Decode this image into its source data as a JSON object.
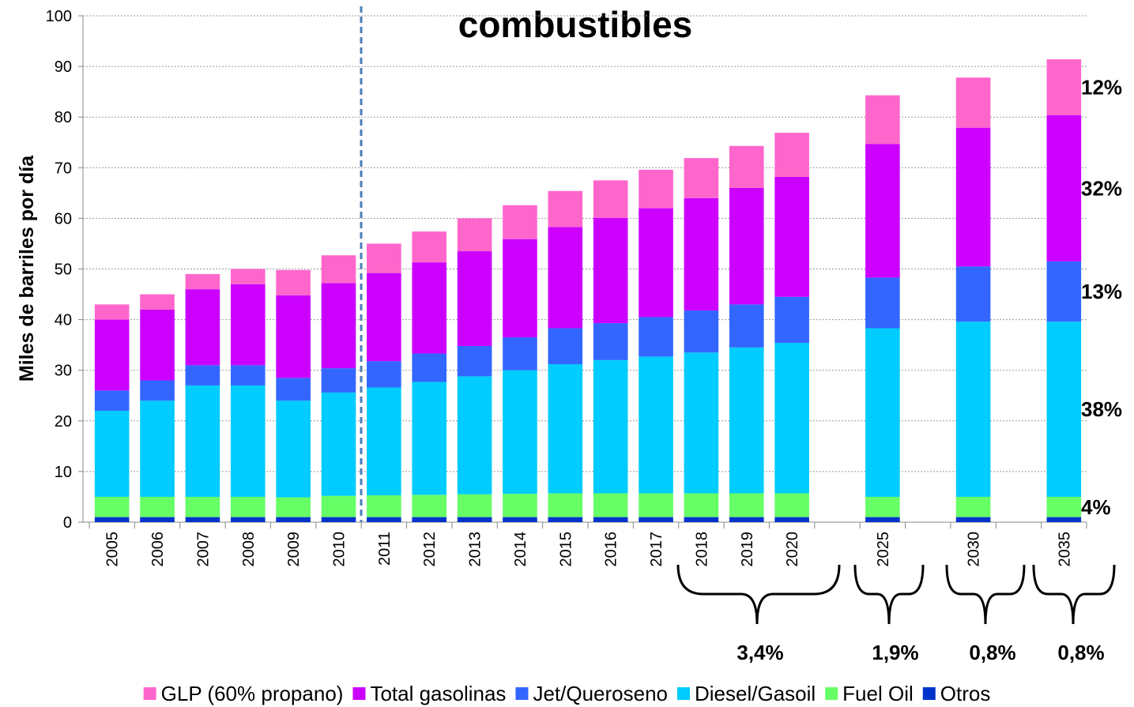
{
  "chart_data": {
    "type": "stacked_bar",
    "title": "combustibles",
    "y_label": "Miles de barriles por día",
    "categories": [
      "2005",
      "2006",
      "2007",
      "2008",
      "2009",
      "2010",
      "2011",
      "2012",
      "2013",
      "2014",
      "2015",
      "2016",
      "2017",
      "2018",
      "2019",
      "2020",
      null,
      "2025",
      null,
      "2030",
      null,
      "2035"
    ],
    "series": [
      {
        "name": "Otros",
        "color": "#0033cc",
        "values": [
          1,
          1,
          1,
          1,
          1,
          1,
          1,
          1,
          1,
          1,
          1,
          1,
          1,
          1,
          1,
          1,
          null,
          1,
          null,
          1,
          null,
          1
        ]
      },
      {
        "name": "Fuel Oil",
        "color": "#66ff66",
        "share": "4%",
        "values": [
          4,
          4,
          4,
          4,
          3.9,
          4.2,
          4.3,
          4.4,
          4.5,
          4.6,
          4.7,
          4.7,
          4.7,
          4.7,
          4.7,
          4.7,
          null,
          4,
          null,
          4,
          null,
          4
        ]
      },
      {
        "name": "Diesel/Gasoil",
        "color": "#00ccff",
        "share": "38%",
        "values": [
          17,
          19,
          22,
          22,
          19.1,
          20.4,
          21.3,
          22.3,
          23.3,
          24.4,
          25.5,
          26.3,
          27,
          27.8,
          28.8,
          29.7,
          null,
          33.3,
          null,
          34.6,
          null,
          34.6
        ]
      },
      {
        "name": "Jet/Queroseno",
        "color": "#3366ff",
        "share": "13%",
        "values": [
          4,
          4,
          4,
          4,
          4.5,
          4.8,
          5.2,
          5.6,
          6,
          6.5,
          7.1,
          7.3,
          7.8,
          8.3,
          8.5,
          9.1,
          null,
          10,
          null,
          10.9,
          null,
          11.9
        ]
      },
      {
        "name": "Total gasolinas",
        "color": "#cc00ff",
        "share": "32%",
        "values": [
          14,
          14,
          15,
          16,
          16.3,
          16.8,
          17.4,
          18,
          18.7,
          19.4,
          20,
          20.8,
          21.5,
          22.2,
          23,
          23.7,
          null,
          26.4,
          null,
          27.4,
          null,
          28.9
        ]
      },
      {
        "name": "GLP (60% propano)",
        "color": "#ff66cc",
        "share": "12%",
        "values": [
          3,
          3,
          3,
          3,
          5,
          5.5,
          5.8,
          6.1,
          6.5,
          6.7,
          7.1,
          7.4,
          7.6,
          7.9,
          8.3,
          8.7,
          null,
          9.6,
          null,
          9.9,
          null,
          11
        ]
      }
    ],
    "growth_labels": [
      "3,4%",
      "1,9%",
      "0,8%",
      "0,8%"
    ],
    "ylim": [
      0,
      100
    ],
    "yticks": [
      0,
      10,
      20,
      30,
      40,
      50,
      60,
      70,
      80,
      90,
      100
    ],
    "grid": true
  }
}
